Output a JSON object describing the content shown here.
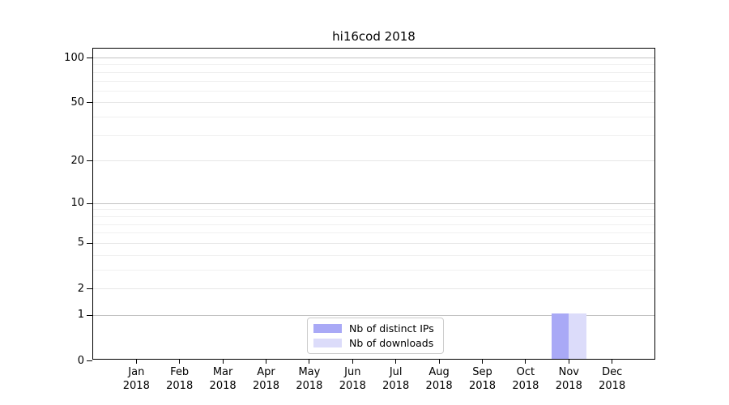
{
  "title": "hi16cod 2018",
  "chart_data": {
    "type": "bar",
    "title": "hi16cod 2018",
    "categories": [
      "Jan",
      "Feb",
      "Mar",
      "Apr",
      "May",
      "Jun",
      "Jul",
      "Aug",
      "Sep",
      "Oct",
      "Nov",
      "Dec"
    ],
    "category_year": "2018",
    "series": [
      {
        "name": "Nb of distinct IPs",
        "color": "#a9a9f6",
        "values": [
          0,
          0,
          0,
          0,
          0,
          0,
          0,
          0,
          0,
          0,
          1,
          0
        ]
      },
      {
        "name": "Nb of downloads",
        "color": "#dcdcfa",
        "values": [
          0,
          0,
          0,
          0,
          0,
          0,
          0,
          0,
          0,
          0,
          1,
          0
        ]
      }
    ],
    "xlabel": "",
    "ylabel": "",
    "yscale": "log1p",
    "ylim": [
      0,
      115
    ],
    "yticks_major": [
      0,
      1,
      2,
      5,
      10,
      20,
      50,
      100
    ],
    "yticks_emphasis": [
      1,
      10,
      100
    ],
    "yticks_minor": [
      3,
      4,
      6,
      7,
      8,
      9,
      30,
      40,
      60,
      70,
      80,
      90
    ],
    "grid": "horizontal",
    "legend_position": "bottom-center-inside"
  },
  "colors": {
    "axis": "#000000",
    "grid_major": "#c3c3c3",
    "grid_mid": "#e7e7e7",
    "grid_minor": "#f0f0f0",
    "legend_border": "#cccccc",
    "text": "#000000",
    "background": "#ffffff"
  }
}
